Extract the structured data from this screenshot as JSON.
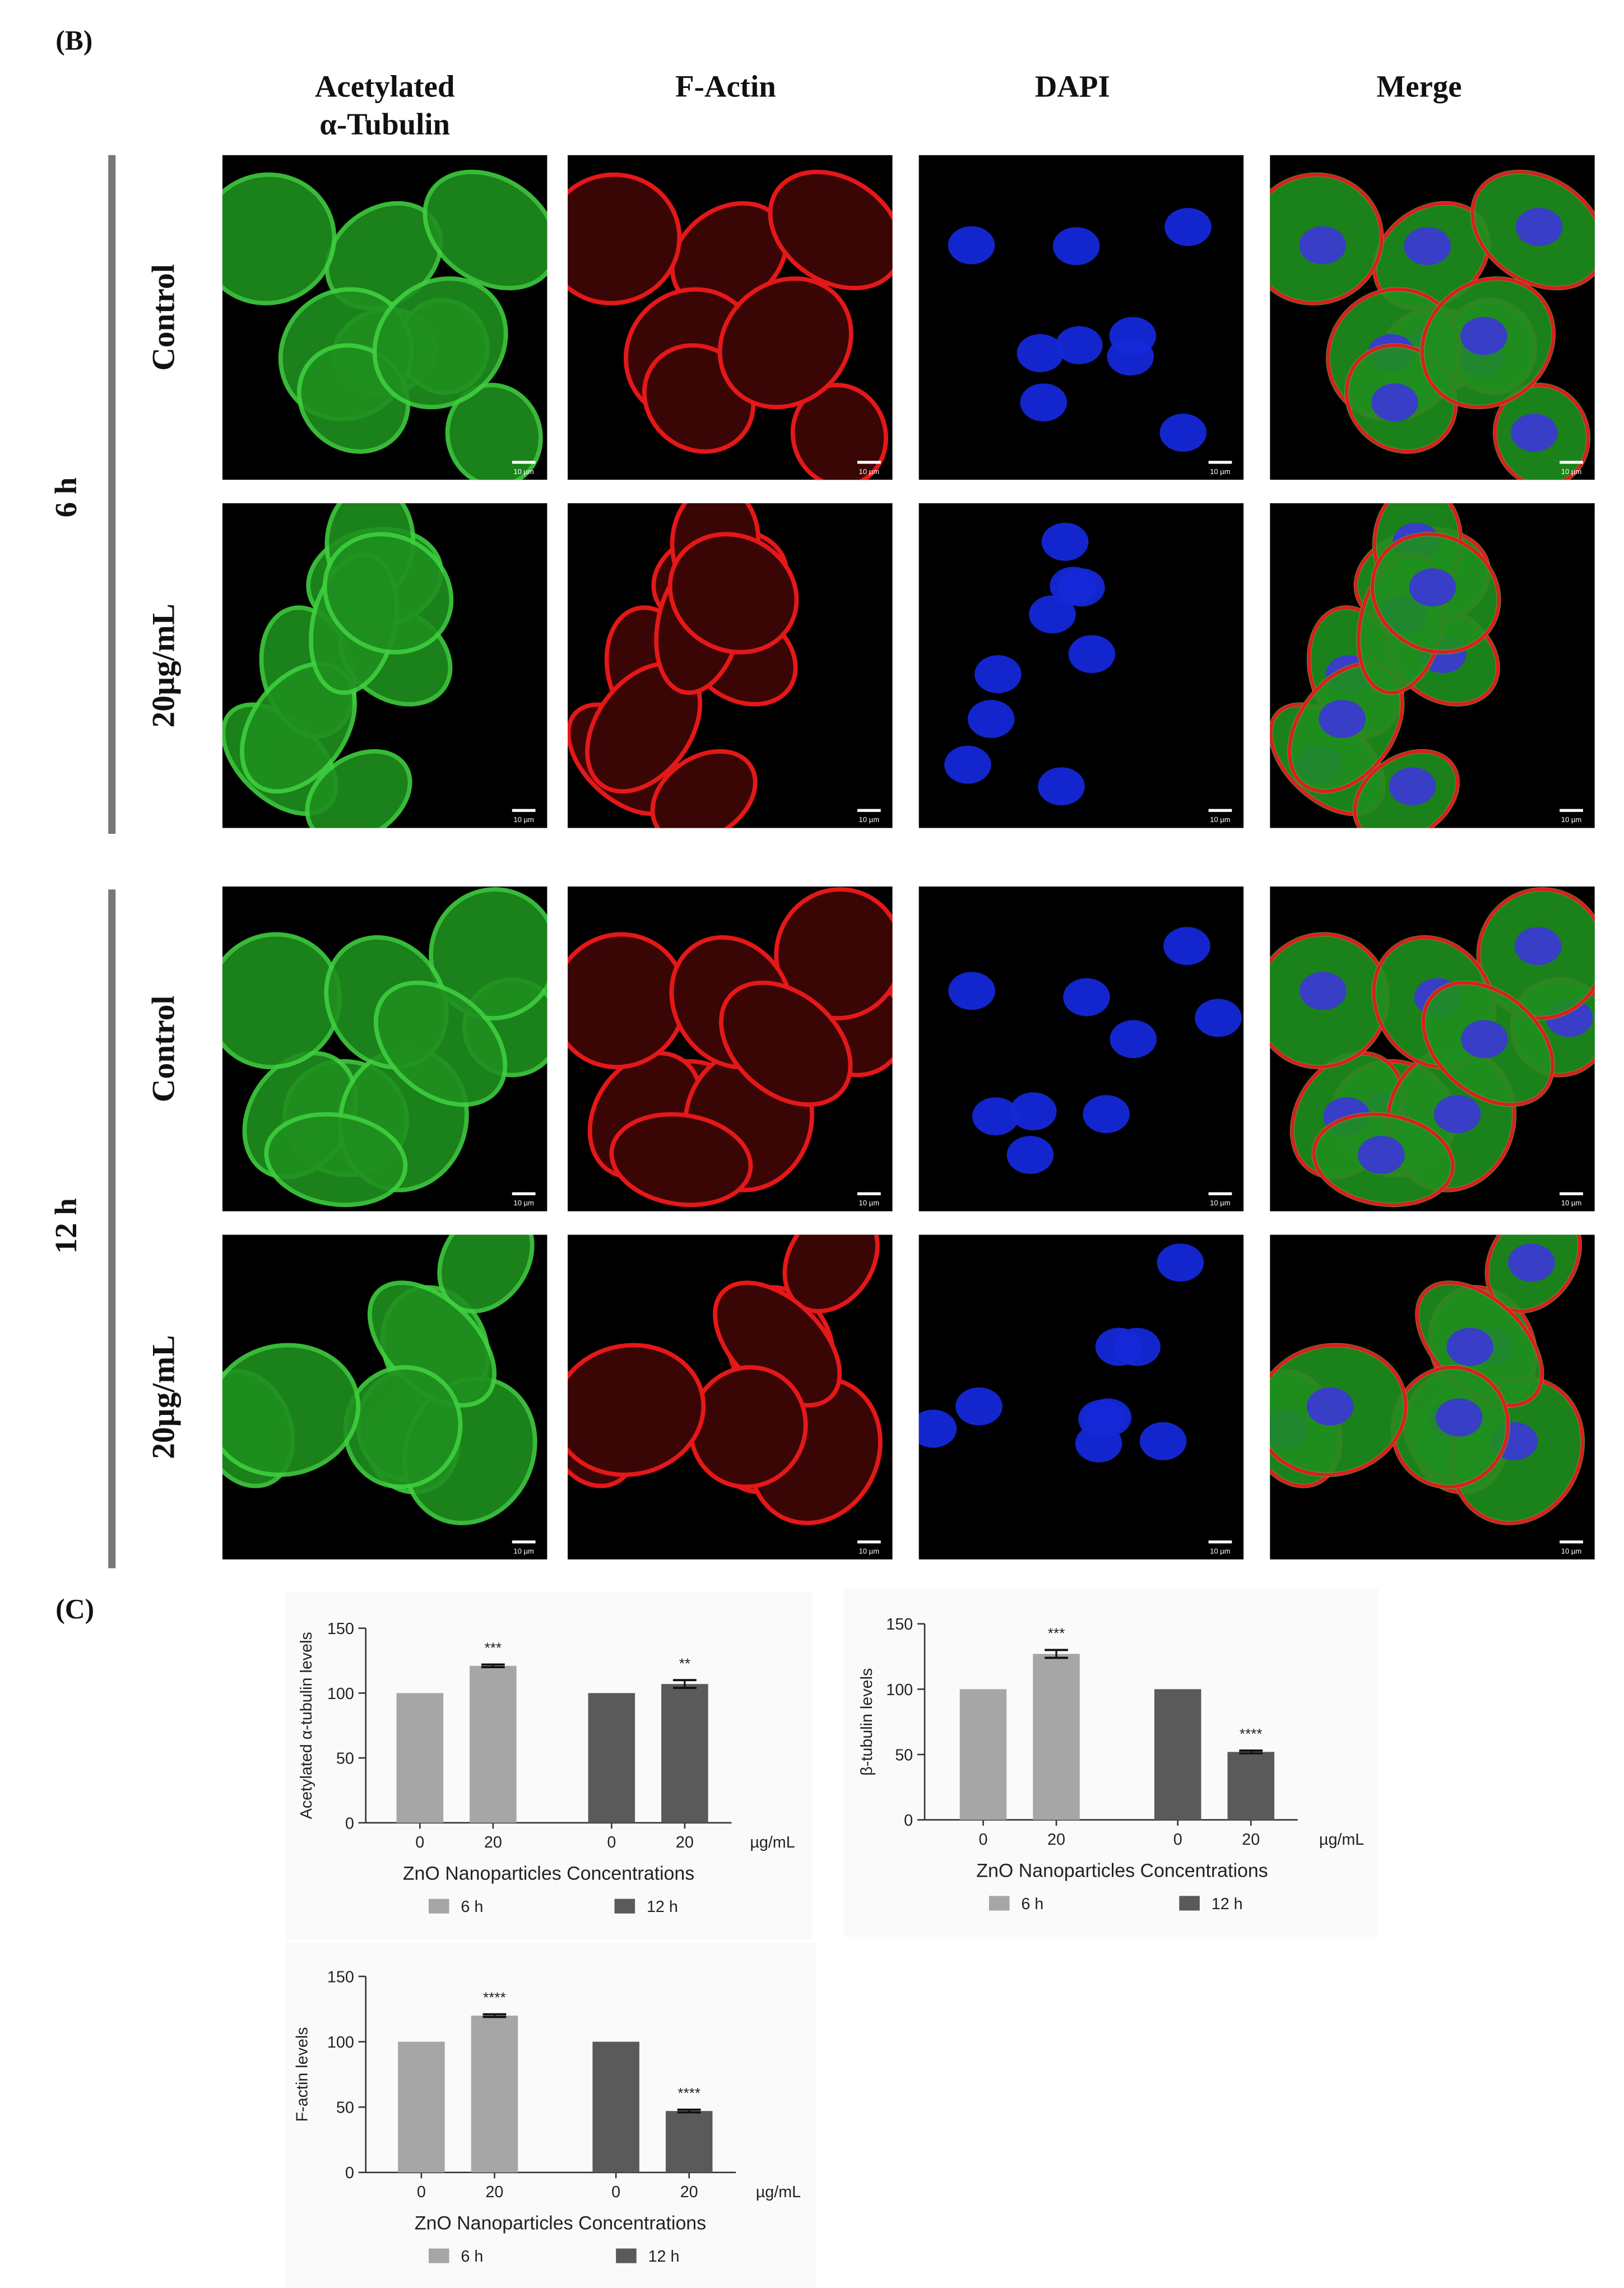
{
  "panel_b": {
    "label": "(B)",
    "column_headers": [
      {
        "lines": [
          "Acetylated",
          "α-Tubulin"
        ]
      },
      {
        "lines": [
          "F-Actin"
        ]
      },
      {
        "lines": [
          "DAPI"
        ]
      },
      {
        "lines": [
          "Merge"
        ]
      }
    ],
    "row_groups": [
      {
        "label": "6 h",
        "rows": [
          "Control",
          "20µg/mL"
        ]
      },
      {
        "label": "12 h",
        "rows": [
          "Control",
          "20µg/mL"
        ]
      }
    ],
    "scale_bar_label": "10 µm"
  },
  "panel_c": {
    "label": "(C)"
  },
  "chart_data": [
    {
      "type": "bar",
      "y_label": "Acetylated α-tubulin levels",
      "x_label": "ZnO Nanoparticles Concentrations",
      "unit_label": "µg/mL",
      "categories": [
        "0",
        "20",
        "0",
        "20"
      ],
      "ylim": [
        0,
        150
      ],
      "yticks": [
        0,
        50,
        100,
        150
      ],
      "series": [
        {
          "name": "6 h",
          "color": "#a6a6a6",
          "values": [
            100,
            121,
            null,
            null
          ],
          "errors": [
            null,
            1,
            null,
            null
          ],
          "significance": [
            null,
            "***",
            null,
            null
          ]
        },
        {
          "name": "12 h",
          "color": "#5a5a5a",
          "values": [
            null,
            null,
            100,
            107
          ],
          "errors": [
            null,
            null,
            null,
            3
          ],
          "significance": [
            null,
            null,
            null,
            "**"
          ]
        }
      ]
    },
    {
      "type": "bar",
      "y_label": "β-tubulin levels",
      "x_label": "ZnO Nanoparticles Concentrations",
      "unit_label": "µg/mL",
      "categories": [
        "0",
        "20",
        "0",
        "20"
      ],
      "ylim": [
        0,
        150
      ],
      "yticks": [
        0,
        50,
        100,
        150
      ],
      "series": [
        {
          "name": "6 h",
          "color": "#a6a6a6",
          "values": [
            100,
            127,
            null,
            null
          ],
          "errors": [
            null,
            3,
            null,
            null
          ],
          "significance": [
            null,
            "***",
            null,
            null
          ]
        },
        {
          "name": "12 h",
          "color": "#5a5a5a",
          "values": [
            null,
            null,
            100,
            52
          ],
          "errors": [
            null,
            null,
            null,
            1
          ],
          "significance": [
            null,
            null,
            null,
            "****"
          ]
        }
      ]
    },
    {
      "type": "bar",
      "y_label": "F-actin levels",
      "x_label": "ZnO Nanoparticles Concentrations",
      "unit_label": "µg/mL",
      "categories": [
        "0",
        "20",
        "0",
        "20"
      ],
      "ylim": [
        0,
        150
      ],
      "yticks": [
        0,
        50,
        100,
        150
      ],
      "series": [
        {
          "name": "6 h",
          "color": "#a6a6a6",
          "values": [
            100,
            120,
            null,
            null
          ],
          "errors": [
            null,
            1,
            null,
            null
          ],
          "significance": [
            null,
            "****",
            null,
            null
          ]
        },
        {
          "name": "12 h",
          "color": "#5a5a5a",
          "values": [
            null,
            null,
            100,
            47
          ],
          "errors": [
            null,
            null,
            null,
            1
          ],
          "significance": [
            null,
            null,
            null,
            "****"
          ]
        }
      ]
    }
  ]
}
